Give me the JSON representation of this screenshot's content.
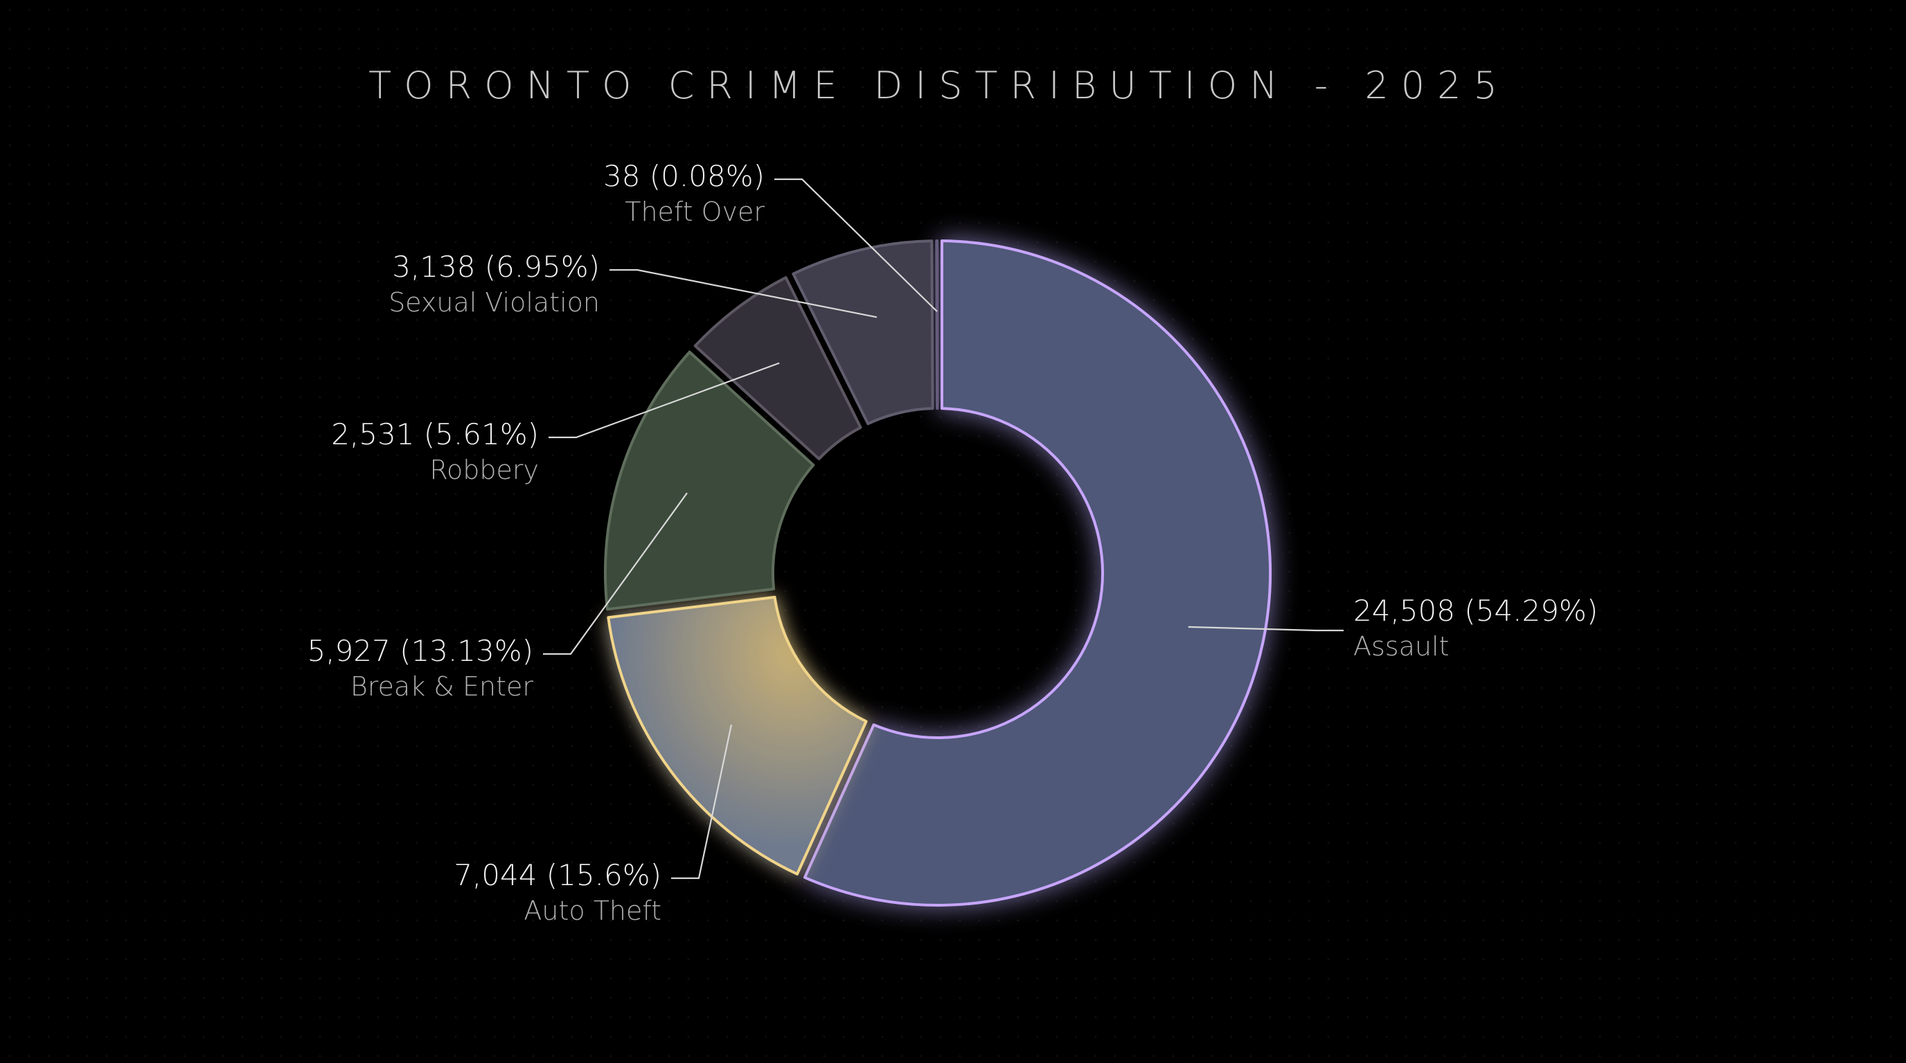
{
  "chart_data": {
    "type": "pie",
    "variant": "donut",
    "title": "TORONTO CRIME DISTRIBUTION - 2025",
    "legend": "none",
    "slices": [
      {
        "category": "Assault",
        "value": 24508,
        "percent_label": "24,508 (54.29%)",
        "fill": "#4f5878",
        "stroke": "#c7a6ff"
      },
      {
        "category": "Auto Theft",
        "value": 7044,
        "percent_label": "7,044 (15.6%)",
        "fill": "#6f7a8e",
        "stroke": "#f0d48a"
      },
      {
        "category": "Break & Enter",
        "value": 5927,
        "percent_label": "5,927 (13.13%)",
        "fill": "#3b4a3a",
        "stroke": "#5f6e5c"
      },
      {
        "category": "Robbery",
        "value": 2531,
        "percent_label": "2,531 (5.61%)",
        "fill": "#34303a",
        "stroke": "#5c5762"
      },
      {
        "category": "Sexual Violation",
        "value": 3138,
        "percent_label": "3,138 (6.95%)",
        "fill": "#403d4c",
        "stroke": "#615d6e"
      },
      {
        "category": "Theft Over",
        "value": 38,
        "percent_label": "38 (0.08%)",
        "fill": "#48405c",
        "stroke": "#655c7c"
      }
    ]
  }
}
